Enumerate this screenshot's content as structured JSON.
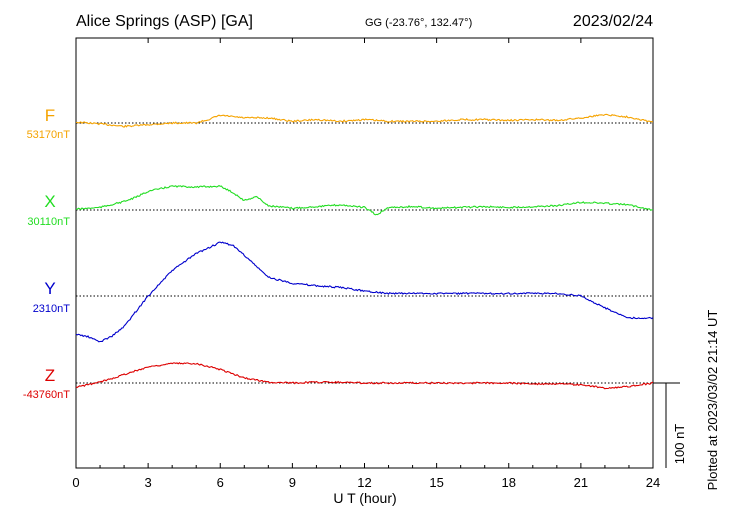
{
  "header": {
    "title": "Alice Springs (ASP)  [GA]",
    "coords": "GG (-23.76°, 132.47°)",
    "date": "2023/02/24"
  },
  "footer": {
    "plotted": "Plotted at 2023/03/02 21:14 UT"
  },
  "colors": {
    "F": "#f5a300",
    "X": "#22dd22",
    "Y": "#0000cc",
    "Z": "#dd0000"
  },
  "chart_data": {
    "type": "line",
    "title": "Alice Springs (ASP)  [GA]",
    "xlabel": "U T (hour)",
    "xlim": [
      0,
      24
    ],
    "x_ticks": [
      "0",
      "3",
      "6",
      "9",
      "12",
      "15",
      "18",
      "21",
      "24"
    ],
    "scale_bar": {
      "value": 100,
      "label": "100 nT"
    },
    "series": [
      {
        "name": "F",
        "baseline_label": "53170nT",
        "baseline": 53170,
        "x": [
          0,
          1,
          2,
          3,
          4,
          5,
          5.5,
          6,
          7,
          8,
          9,
          10,
          11,
          12,
          13,
          14,
          15,
          16,
          17,
          18,
          19,
          20,
          21,
          22,
          23,
          24
        ],
        "y": [
          53171,
          53169,
          53166,
          53168,
          53170,
          53170,
          53174,
          53179,
          53176,
          53176,
          53172,
          53174,
          53172,
          53174,
          53172,
          53172,
          53172,
          53174,
          53174,
          53173,
          53174,
          53173,
          53176,
          53180,
          53177,
          53171
        ]
      },
      {
        "name": "X",
        "baseline_label": "30110nT",
        "baseline": 30110,
        "x": [
          0,
          1,
          2,
          2.5,
          3,
          4,
          5,
          6,
          6.5,
          7,
          7.5,
          8,
          9,
          10,
          11,
          12,
          12.5,
          13,
          14,
          15,
          16,
          17,
          18,
          19,
          20,
          21,
          22,
          23,
          24
        ],
        "y": [
          30111,
          30113,
          30120,
          30125,
          30132,
          30138,
          30137,
          30138,
          30131,
          30121,
          30126,
          30115,
          30112,
          30114,
          30116,
          30113,
          30104,
          30113,
          30114,
          30112,
          30113,
          30114,
          30113,
          30114,
          30115,
          30119,
          30118,
          30116,
          30110
        ]
      },
      {
        "name": "Y",
        "baseline_label": "2310nT",
        "baseline": 2310,
        "x": [
          0,
          0.5,
          1,
          1.5,
          2,
          3,
          4,
          5,
          6,
          6.5,
          7,
          8,
          9,
          10,
          11,
          12,
          13,
          14,
          15,
          16,
          17,
          18,
          19,
          20,
          21,
          22,
          23,
          24
        ],
        "y": [
          2265,
          2262,
          2256,
          2263,
          2274,
          2310,
          2340,
          2360,
          2373,
          2370,
          2358,
          2332,
          2325,
          2322,
          2320,
          2316,
          2313,
          2313,
          2313,
          2313,
          2313,
          2313,
          2313,
          2313,
          2310,
          2296,
          2284,
          2284
        ]
      },
      {
        "name": "Z",
        "baseline_label": "-43760nT",
        "baseline": -43760,
        "x": [
          0,
          1,
          2,
          3,
          4,
          5,
          6,
          7,
          8,
          9,
          10,
          11,
          12,
          13,
          14,
          15,
          16,
          17,
          18,
          19,
          20,
          21,
          22,
          23,
          24
        ],
        "y": [
          -43765,
          -43759,
          -43750,
          -43741,
          -43737,
          -43737,
          -43744,
          -43754,
          -43759,
          -43760,
          -43759,
          -43759,
          -43760,
          -43760,
          -43760,
          -43760,
          -43760,
          -43760,
          -43760,
          -43761,
          -43761,
          -43762,
          -43766,
          -43764,
          -43760
        ]
      }
    ]
  }
}
